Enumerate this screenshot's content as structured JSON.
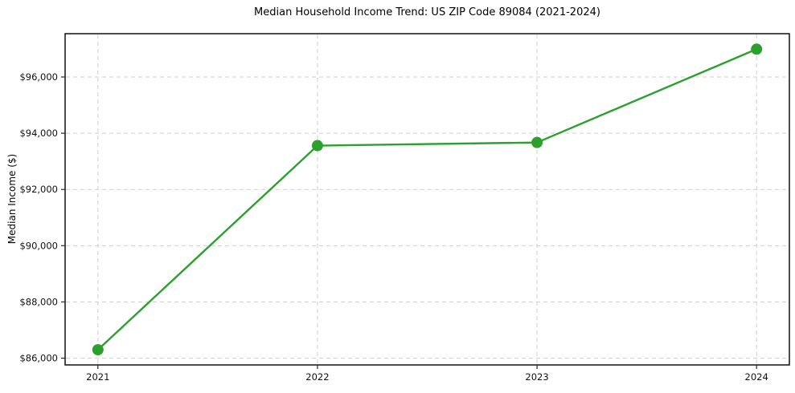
{
  "chart_data": {
    "type": "line",
    "title": "Median Household Income Trend: US ZIP Code 89084 (2021-2024)",
    "xlabel": "",
    "ylabel": "Median Income ($)",
    "categories": [
      "2021",
      "2022",
      "2023",
      "2024"
    ],
    "values": [
      86300,
      93560,
      93670,
      96990
    ],
    "yticks": [
      86000,
      88000,
      90000,
      92000,
      94000,
      96000
    ],
    "ytick_labels": [
      "$86,000",
      "$88,000",
      "$90,000",
      "$92,000",
      "$94,000",
      "$96,000"
    ],
    "ylim": [
      85760,
      97540
    ],
    "grid": true,
    "grid_style": "dashed",
    "legend_position": "none",
    "line_color": "#2ca02c",
    "marker_color": "#2ca02c",
    "marker": "circle",
    "background": "#ffffff"
  }
}
